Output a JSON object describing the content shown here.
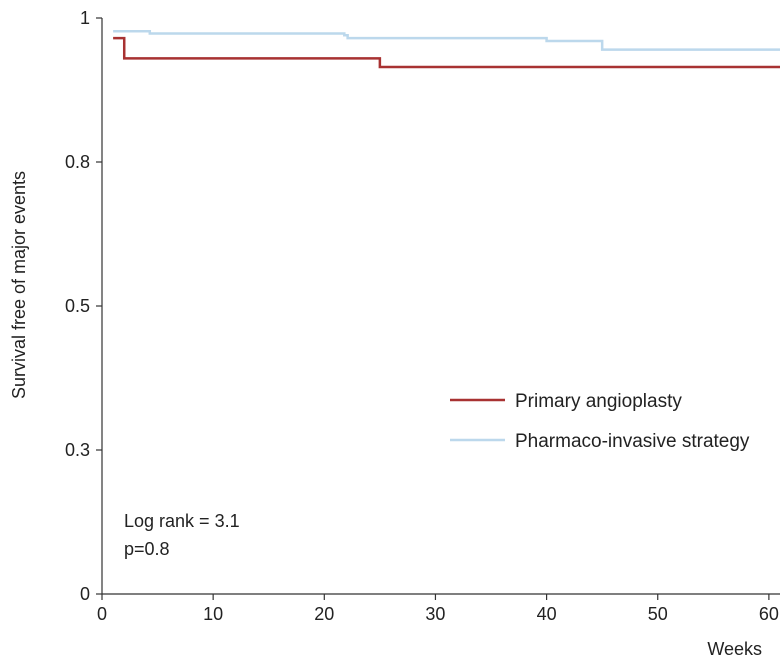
{
  "chart_data": {
    "type": "line",
    "title": "",
    "xlabel": "Weeks",
    "ylabel": "Survival free of major events",
    "xlim": [
      0,
      61
    ],
    "ylim": [
      0,
      1
    ],
    "x_ticks": [
      0,
      10,
      20,
      30,
      40,
      50,
      60
    ],
    "y_ticks": [
      0,
      0.25,
      0.5,
      0.75,
      1
    ],
    "y_tick_labels": [
      "0",
      "0.3",
      "0.5",
      "0.8",
      "1"
    ],
    "grid": false,
    "legend_position": "right",
    "series": [
      {
        "name": "Primary angioplasty",
        "color": "#a83232",
        "step": true,
        "x": [
          1,
          2,
          25,
          61
        ],
        "y": [
          0.965,
          0.93,
          0.915,
          0.915
        ]
      },
      {
        "name": "Pharmaco-invasive strategy",
        "color": "#bcd8ec",
        "step": true,
        "x": [
          1,
          4.3,
          21.8,
          22.1,
          40,
          45,
          61
        ],
        "y": [
          0.977,
          0.973,
          0.97,
          0.965,
          0.96,
          0.945,
          0.945
        ]
      }
    ],
    "annotations": [
      "Log rank = 3.1",
      "p=0.8"
    ]
  }
}
